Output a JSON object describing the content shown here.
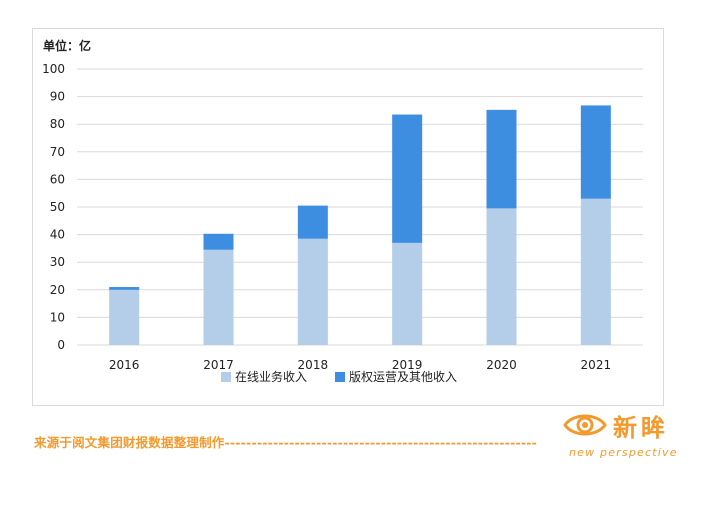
{
  "chart_data": {
    "type": "bar",
    "stacked": true,
    "title": "",
    "unit_label": "单位：亿",
    "categories": [
      "2016",
      "2017",
      "2018",
      "2019",
      "2020",
      "2021"
    ],
    "series": [
      {
        "name": "在线业务收入",
        "color": "#b4cde8",
        "values": [
          20,
          34.5,
          38.5,
          37,
          49.5,
          53
        ]
      },
      {
        "name": "版权运营及其他收入",
        "color": "#3d8ee0",
        "values": [
          1,
          5.8,
          12,
          46.5,
          35.7,
          33.8
        ]
      }
    ],
    "ylim": [
      0,
      100
    ],
    "yticks": [
      0,
      10,
      20,
      30,
      40,
      50,
      60,
      70,
      80,
      90,
      100
    ],
    "grid": true,
    "legend_position": "bottom"
  },
  "footer": {
    "source": "来源于阅文集团财报数据整理制作----------------------------------------------------------",
    "logo_cn": "新眸",
    "logo_en": "new perspective",
    "brand_color": "#f29a2e"
  }
}
